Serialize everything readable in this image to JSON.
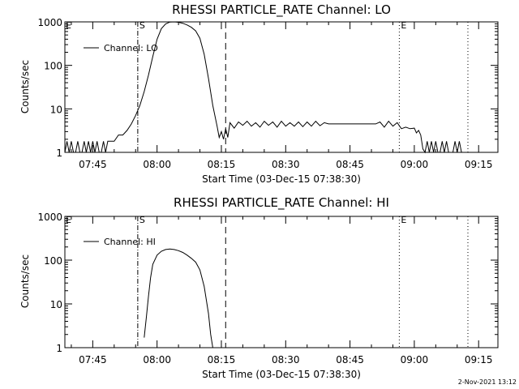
{
  "chart_data": [
    {
      "type": "line",
      "title": "RHESSI PARTICLE_RATE Channel: LO",
      "xlabel": "Start Time (03-Dec-15 07:38:30)",
      "ylabel": "Counts/sec",
      "yscale": "log",
      "ylim": [
        1,
        1000
      ],
      "xlim": [
        "07:38:30",
        "09:19:30"
      ],
      "x_tick_labels": [
        "07:45",
        "08:00",
        "08:15",
        "08:30",
        "08:45",
        "09:00",
        "09:15"
      ],
      "y_tick_labels": [
        "1",
        "10",
        "100",
        "1000"
      ],
      "legend": {
        "entries": [
          "Channel: LO"
        ],
        "placement": "top-left"
      },
      "markers": [
        {
          "label": "S",
          "time": "07:55:30",
          "style": "dash-dot"
        },
        {
          "label": "",
          "time": "08:16:00",
          "style": "dashed"
        },
        {
          "label": "E",
          "time": "08:56:30",
          "style": "dotted"
        },
        {
          "label": "",
          "time": "09:12:30",
          "style": "dotted"
        }
      ],
      "series": [
        {
          "name": "Channel: LO",
          "points": [
            [
              "07:38:30",
              1
            ],
            [
              "07:39:00",
              1.8
            ],
            [
              "07:39:30",
              1
            ],
            [
              "07:40:00",
              1.8
            ],
            [
              "07:40:30",
              1
            ],
            [
              "07:41:00",
              1
            ],
            [
              "07:41:30",
              1.8
            ],
            [
              "07:42:00",
              1
            ],
            [
              "07:42:30",
              1
            ],
            [
              "07:43:00",
              1.8
            ],
            [
              "07:43:30",
              1
            ],
            [
              "07:44:00",
              1.8
            ],
            [
              "07:44:30",
              1
            ],
            [
              "07:45:00",
              1.8
            ],
            [
              "07:45:30",
              1
            ],
            [
              "07:46:00",
              1.8
            ],
            [
              "07:46:30",
              1
            ],
            [
              "07:47:00",
              1
            ],
            [
              "07:47:30",
              1.8
            ],
            [
              "07:48:00",
              1
            ],
            [
              "07:48:30",
              1.8
            ],
            [
              "07:49:00",
              1.8
            ],
            [
              "07:50:00",
              1.8
            ],
            [
              "07:51:00",
              2.5
            ],
            [
              "07:52:00",
              2.5
            ],
            [
              "07:53:00",
              3.2
            ],
            [
              "07:54:00",
              4.5
            ],
            [
              "07:55:00",
              7
            ],
            [
              "07:56:00",
              12
            ],
            [
              "07:57:00",
              25
            ],
            [
              "07:58:00",
              60
            ],
            [
              "07:59:00",
              160
            ],
            [
              "08:00:00",
              400
            ],
            [
              "08:01:00",
              700
            ],
            [
              "08:02:00",
              900
            ],
            [
              "08:03:00",
              990
            ],
            [
              "08:04:00",
              1000
            ],
            [
              "08:05:00",
              980
            ],
            [
              "08:06:00",
              930
            ],
            [
              "08:07:00",
              850
            ],
            [
              "08:08:00",
              750
            ],
            [
              "08:09:00",
              620
            ],
            [
              "08:10:00",
              420
            ],
            [
              "08:11:00",
              180
            ],
            [
              "08:12:00",
              50
            ],
            [
              "08:13:00",
              12
            ],
            [
              "08:14:00",
              4
            ],
            [
              "08:14:30",
              2.2
            ],
            [
              "08:15:00",
              3
            ],
            [
              "08:15:30",
              2
            ],
            [
              "08:16:00",
              3.5
            ],
            [
              "08:16:30",
              2.2
            ],
            [
              "08:17:00",
              4.8
            ],
            [
              "08:18:00",
              3.6
            ],
            [
              "08:19:00",
              5
            ],
            [
              "08:20:00",
              4.2
            ],
            [
              "08:21:00",
              5.2
            ],
            [
              "08:22:00",
              4
            ],
            [
              "08:23:00",
              4.8
            ],
            [
              "08:24:00",
              3.8
            ],
            [
              "08:25:00",
              5.2
            ],
            [
              "08:26:00",
              4.2
            ],
            [
              "08:27:00",
              5
            ],
            [
              "08:28:00",
              3.8
            ],
            [
              "08:29:00",
              5.2
            ],
            [
              "08:30:00",
              4
            ],
            [
              "08:31:00",
              4.8
            ],
            [
              "08:32:00",
              4
            ],
            [
              "08:33:00",
              5
            ],
            [
              "08:34:00",
              3.9
            ],
            [
              "08:35:00",
              5
            ],
            [
              "08:36:00",
              4
            ],
            [
              "08:37:00",
              5.2
            ],
            [
              "08:38:00",
              4.1
            ],
            [
              "08:39:00",
              4.8
            ],
            [
              "08:40:00",
              4.5
            ],
            [
              "08:41:00",
              4.5
            ],
            [
              "08:42:00",
              4.5
            ],
            [
              "08:43:00",
              4.5
            ],
            [
              "08:44:00",
              4.5
            ],
            [
              "08:45:00",
              4.5
            ],
            [
              "08:46:00",
              4.5
            ],
            [
              "08:47:00",
              4.5
            ],
            [
              "08:48:00",
              4.5
            ],
            [
              "08:49:00",
              4.5
            ],
            [
              "08:50:00",
              4.5
            ],
            [
              "08:51:00",
              4.5
            ],
            [
              "08:52:00",
              5
            ],
            [
              "08:53:00",
              3.8
            ],
            [
              "08:54:00",
              5.2
            ],
            [
              "08:55:00",
              4
            ],
            [
              "08:56:00",
              4.8
            ],
            [
              "08:57:00",
              3.5
            ],
            [
              "08:58:00",
              3.8
            ],
            [
              "08:59:00",
              3.5
            ],
            [
              "09:00:00",
              3.6
            ],
            [
              "09:00:30",
              2.8
            ],
            [
              "09:01:00",
              3.2
            ],
            [
              "09:01:30",
              2.5
            ],
            [
              "09:02:00",
              1.2
            ],
            [
              "09:02:30",
              1
            ],
            [
              "09:03:00",
              1.8
            ],
            [
              "09:03:30",
              1
            ],
            [
              "09:04:00",
              1.8
            ],
            [
              "09:04:30",
              1
            ],
            [
              "09:05:00",
              1.8
            ],
            [
              "09:05:30",
              1
            ],
            [
              "09:06:00",
              1
            ],
            [
              "09:06:30",
              1.8
            ],
            [
              "09:07:00",
              1
            ],
            [
              "09:07:30",
              1.8
            ],
            [
              "09:08:00",
              1
            ],
            [
              "09:09:00",
              1
            ],
            [
              "09:09:30",
              1.8
            ],
            [
              "09:10:00",
              1
            ],
            [
              "09:10:30",
              1.8
            ],
            [
              "09:11:00",
              1
            ],
            [
              "09:12:00",
              1
            ],
            [
              "09:13:00",
              1
            ],
            [
              "09:14:00",
              1
            ],
            [
              "09:15:00",
              1
            ]
          ]
        }
      ]
    },
    {
      "type": "line",
      "title": "RHESSI PARTICLE_RATE Channel: HI",
      "xlabel": "Start Time (03-Dec-15 07:38:30)",
      "ylabel": "Counts/sec",
      "yscale": "log",
      "ylim": [
        1,
        1000
      ],
      "xlim": [
        "07:38:30",
        "09:19:30"
      ],
      "x_tick_labels": [
        "07:45",
        "08:00",
        "08:15",
        "08:30",
        "08:45",
        "09:00",
        "09:15"
      ],
      "y_tick_labels": [
        "1",
        "10",
        "100",
        "1000"
      ],
      "legend": {
        "entries": [
          "Channel: HI"
        ],
        "placement": "top-left"
      },
      "markers": [
        {
          "label": "S",
          "time": "07:55:30",
          "style": "dash-dot"
        },
        {
          "label": "",
          "time": "08:16:00",
          "style": "dashed"
        },
        {
          "label": "E",
          "time": "08:56:30",
          "style": "dotted"
        },
        {
          "label": "",
          "time": "09:12:30",
          "style": "dotted"
        }
      ],
      "series": [
        {
          "name": "Channel: HI",
          "points": [
            [
              "07:57:00",
              1.7
            ],
            [
              "07:57:30",
              5
            ],
            [
              "07:58:00",
              15
            ],
            [
              "07:58:30",
              40
            ],
            [
              "07:59:00",
              80
            ],
            [
              "08:00:00",
              130
            ],
            [
              "08:01:00",
              160
            ],
            [
              "08:02:00",
              175
            ],
            [
              "08:03:00",
              180
            ],
            [
              "08:04:00",
              175
            ],
            [
              "08:05:00",
              165
            ],
            [
              "08:06:00",
              150
            ],
            [
              "08:07:00",
              130
            ],
            [
              "08:08:00",
              110
            ],
            [
              "08:09:00",
              90
            ],
            [
              "08:10:00",
              60
            ],
            [
              "08:11:00",
              25
            ],
            [
              "08:12:00",
              6
            ],
            [
              "08:12:30",
              2
            ],
            [
              "08:13:00",
              1
            ]
          ]
        }
      ]
    }
  ],
  "timestamp": "2-Nov-2021 13:12"
}
